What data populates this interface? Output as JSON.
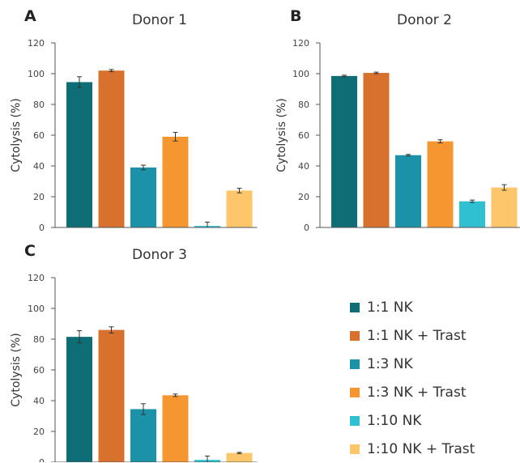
{
  "chart_data": [
    {
      "type": "bar",
      "panel_letter": "A",
      "title": "Donor 1",
      "ylabel": "Cytolysis (%)",
      "xlabel": "",
      "ylim": [
        0,
        120
      ],
      "yticks": [
        "0",
        "20",
        "40",
        "60",
        "80",
        "100",
        "120"
      ],
      "categories": [
        "1:1 NK",
        "1:1 NK + Trast",
        "1:3 NK",
        "1:3 NK + Trast",
        "1:10 NK",
        "1:10 NK + Trast"
      ],
      "values": [
        94.5,
        102,
        39,
        59,
        1,
        24
      ],
      "errors": [
        3.5,
        0.7,
        1.5,
        2.8,
        2.5,
        1.5
      ]
    },
    {
      "type": "bar",
      "panel_letter": "B",
      "title": "Donor 2",
      "ylabel": "Cytolysis (%)",
      "xlabel": "",
      "ylim": [
        0,
        120
      ],
      "yticks": [
        "0",
        "20",
        "40",
        "60",
        "80",
        "100",
        "120"
      ],
      "categories": [
        "1:1 NK",
        "1:1 NK + Trast",
        "1:3 NK",
        "1:3 NK + Trast",
        "1:10 NK",
        "1:10 NK + Trast"
      ],
      "values": [
        98.5,
        100.5,
        47,
        56,
        17,
        26
      ],
      "errors": [
        0.5,
        0.5,
        0.5,
        1.0,
        0.8,
        1.8
      ]
    },
    {
      "type": "bar",
      "panel_letter": "C",
      "title": "Donor 3",
      "ylabel": "Cytolysis (%)",
      "xlabel": "",
      "ylim": [
        0,
        120
      ],
      "yticks": [
        "0",
        "20",
        "40",
        "60",
        "80",
        "100",
        "120"
      ],
      "categories": [
        "1:1 NK",
        "1:1 NK + Trast",
        "1:3 NK",
        "1:3 NK + Trast",
        "1:10 NK",
        "1:10 NK + Trast"
      ],
      "values": [
        81.5,
        86,
        34.5,
        43.5,
        1.5,
        6
      ],
      "errors": [
        4,
        2,
        3.5,
        0.8,
        2.5,
        0.4
      ]
    }
  ],
  "legend": [
    {
      "label": "1:1 NK",
      "color": "#0f6e75"
    },
    {
      "label": "1:1 NK + Trast",
      "color": "#d8702e"
    },
    {
      "label": "1:3 NK",
      "color": "#1b92a8"
    },
    {
      "label": "1:3 NK + Trast",
      "color": "#f59630"
    },
    {
      "label": "1:10 NK",
      "color": "#2fc0d2"
    },
    {
      "label": "1:10 NK + Trast",
      "color": "#fdc66a"
    }
  ]
}
